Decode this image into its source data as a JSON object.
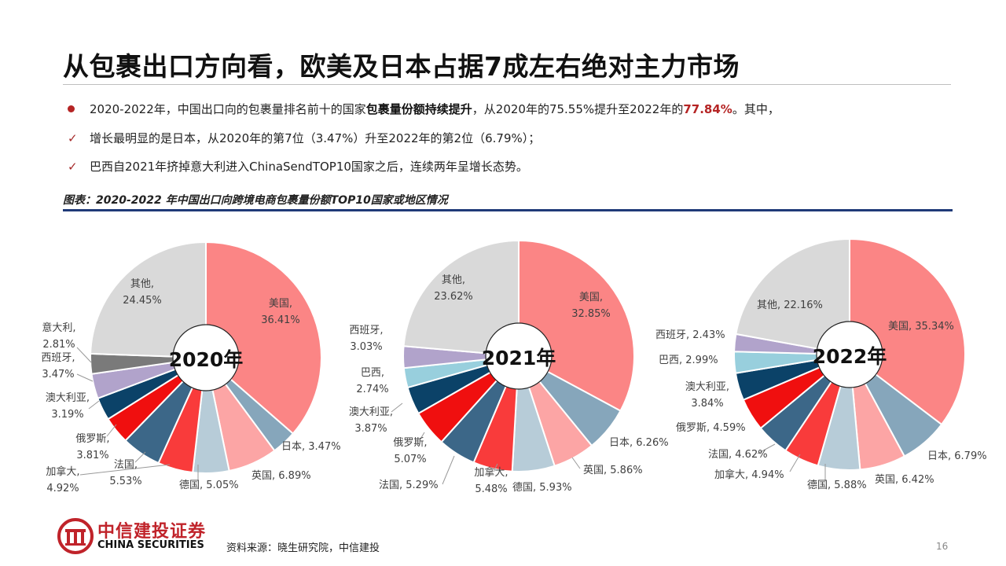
{
  "title": "从包裹出口方向看，欧美及日本占据7成左右绝对主力市场",
  "bullets": {
    "b1_pre": "2020-2022年，中国出口向的包裹量排名前十的国家",
    "b1_bold": "包裹量份额持续提升",
    "b1_mid": "，从2020年的75.55%提升至2022年的",
    "b1_red": "77.84%",
    "b1_post": "。其中，",
    "b2_mark": "✓",
    "b2": "增长最明显的是日本，从2020年的第7位（3.47%）升至2022年的第2位（6.79%）；",
    "b3_mark": "✓",
    "b3": "巴西自2021年挤掉意大利进入ChinaSendTOP10国家之后，连续两年呈增长态势。"
  },
  "caption": "图表：2020-2022 年中国出口向跨境电商包裹量份额TOP10国家或地区情况",
  "footer": {
    "logo_cn": "中信建投证券",
    "logo_en": "CHINA SECURITIES",
    "source": "资料来源：晓生研究院，中信建投",
    "page": "16"
  },
  "colors": {
    "美国": "#fb8585",
    "日本": "#86a6bb",
    "英国": "#fca5a5",
    "德国": "#b7ccd8",
    "加拿大": "#f93b3b",
    "法国": "#3c6788",
    "俄罗斯": "#f00f0f",
    "澳大利亚": "#0b4268",
    "巴西": "#98cfdd",
    "西班牙": "#b1a3cb",
    "意大利": "#7a7a7a",
    "其他": "#d9d9d9"
  },
  "chart_data": [
    {
      "type": "pie",
      "title": "2020年",
      "slices": [
        {
          "name": "美国",
          "value": 36.41,
          "label": "36.41%"
        },
        {
          "name": "日本",
          "value": 3.47,
          "label": "3.47%"
        },
        {
          "name": "英国",
          "value": 6.89,
          "label": "6.89%"
        },
        {
          "name": "德国",
          "value": 5.05,
          "label": "5.05%"
        },
        {
          "name": "加拿大",
          "value": 4.92,
          "label": "4.92%"
        },
        {
          "name": "法国",
          "value": 5.53,
          "label": "5.53%"
        },
        {
          "name": "俄罗斯",
          "value": 3.81,
          "label": "3.81%"
        },
        {
          "name": "澳大利亚",
          "value": 3.19,
          "label": "3.19%"
        },
        {
          "name": "西班牙",
          "value": 3.47,
          "label": "3.47%"
        },
        {
          "name": "意大利",
          "value": 2.81,
          "label": "2.81%"
        },
        {
          "name": "其他",
          "value": 24.45,
          "label": "24.45%"
        }
      ]
    },
    {
      "type": "pie",
      "title": "2021年",
      "slices": [
        {
          "name": "美国",
          "value": 32.85,
          "label": "32.85%"
        },
        {
          "name": "日本",
          "value": 6.26,
          "label": "6.26%"
        },
        {
          "name": "英国",
          "value": 5.86,
          "label": "5.86%"
        },
        {
          "name": "德国",
          "value": 5.93,
          "label": "5.93%"
        },
        {
          "name": "加拿大",
          "value": 5.48,
          "label": "5.48%"
        },
        {
          "name": "法国",
          "value": 5.29,
          "label": "5.29%"
        },
        {
          "name": "俄罗斯",
          "value": 5.07,
          "label": "5.07%"
        },
        {
          "name": "澳大利亚",
          "value": 3.87,
          "label": "3.87%"
        },
        {
          "name": "巴西",
          "value": 2.74,
          "label": "2.74%"
        },
        {
          "name": "西班牙",
          "value": 3.03,
          "label": "3.03%"
        },
        {
          "name": "其他",
          "value": 23.62,
          "label": "23.62%"
        }
      ]
    },
    {
      "type": "pie",
      "title": "2022年",
      "slices": [
        {
          "name": "美国",
          "value": 35.34,
          "label": "35.34%"
        },
        {
          "name": "日本",
          "value": 6.79,
          "label": "6.79%"
        },
        {
          "name": "英国",
          "value": 6.42,
          "label": "6.42%"
        },
        {
          "name": "德国",
          "value": 5.88,
          "label": "5.88%"
        },
        {
          "name": "加拿大",
          "value": 4.94,
          "label": "4.94%"
        },
        {
          "name": "法国",
          "value": 4.62,
          "label": "4.62%"
        },
        {
          "name": "俄罗斯",
          "value": 4.59,
          "label": "4.59%"
        },
        {
          "name": "澳大利亚",
          "value": 3.84,
          "label": "3.84%"
        },
        {
          "name": "巴西",
          "value": 2.99,
          "label": "2.99%"
        },
        {
          "name": "西班牙",
          "value": 2.43,
          "label": "2.43%"
        },
        {
          "name": "其他",
          "value": 22.16,
          "label": "22.16%"
        }
      ]
    }
  ]
}
